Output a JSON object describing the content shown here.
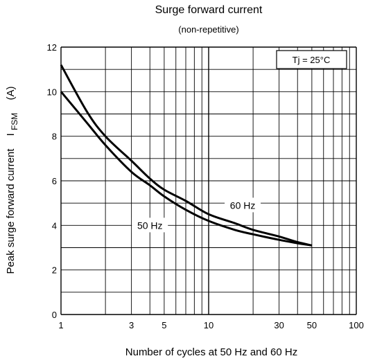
{
  "chart_data": {
    "type": "line",
    "title": "Surge forward current",
    "subtitle": "(non-repetitive)",
    "xlabel": "Number of cycles at 50 Hz and 60 Hz",
    "ylabel_main": "Peak surge forward current",
    "ylabel_symbol": "I",
    "ylabel_subscript": "FSM",
    "ylabel_unit": "(A)",
    "x_scale": "log",
    "xlim": [
      1,
      100
    ],
    "ylim": [
      0,
      12
    ],
    "x_ticks": [
      1,
      3,
      5,
      10,
      30,
      50,
      100
    ],
    "x_tick_labels": [
      "1",
      "3",
      "5",
      "10",
      "30",
      "50",
      "100"
    ],
    "y_ticks": [
      0,
      2,
      4,
      6,
      8,
      10,
      12
    ],
    "y_tick_labels": [
      "0",
      "2",
      "4",
      "6",
      "8",
      "10",
      "12"
    ],
    "grid": true,
    "annotation": "Tj = 25°C",
    "series": [
      {
        "name": "60 Hz",
        "x": [
          1,
          1.5,
          2,
          3,
          4,
          5,
          7,
          10,
          15,
          20,
          30,
          40,
          50
        ],
        "y": [
          11.2,
          9.1,
          8.0,
          6.9,
          6.1,
          5.6,
          5.1,
          4.5,
          4.1,
          3.8,
          3.5,
          3.25,
          3.1
        ]
      },
      {
        "name": "50 Hz",
        "x": [
          1,
          1.5,
          2,
          3,
          4,
          5,
          7,
          10,
          15,
          20,
          30,
          40,
          50
        ],
        "y": [
          10.0,
          8.6,
          7.6,
          6.4,
          5.8,
          5.3,
          4.7,
          4.2,
          3.8,
          3.6,
          3.35,
          3.2,
          3.1
        ]
      }
    ],
    "series_label_positions": [
      {
        "name": "60 Hz",
        "x": 17,
        "y": 4.9
      },
      {
        "name": "50 Hz",
        "x": 4,
        "y": 4.0
      }
    ],
    "colors": {
      "line": "#000000",
      "grid": "#000000"
    }
  }
}
